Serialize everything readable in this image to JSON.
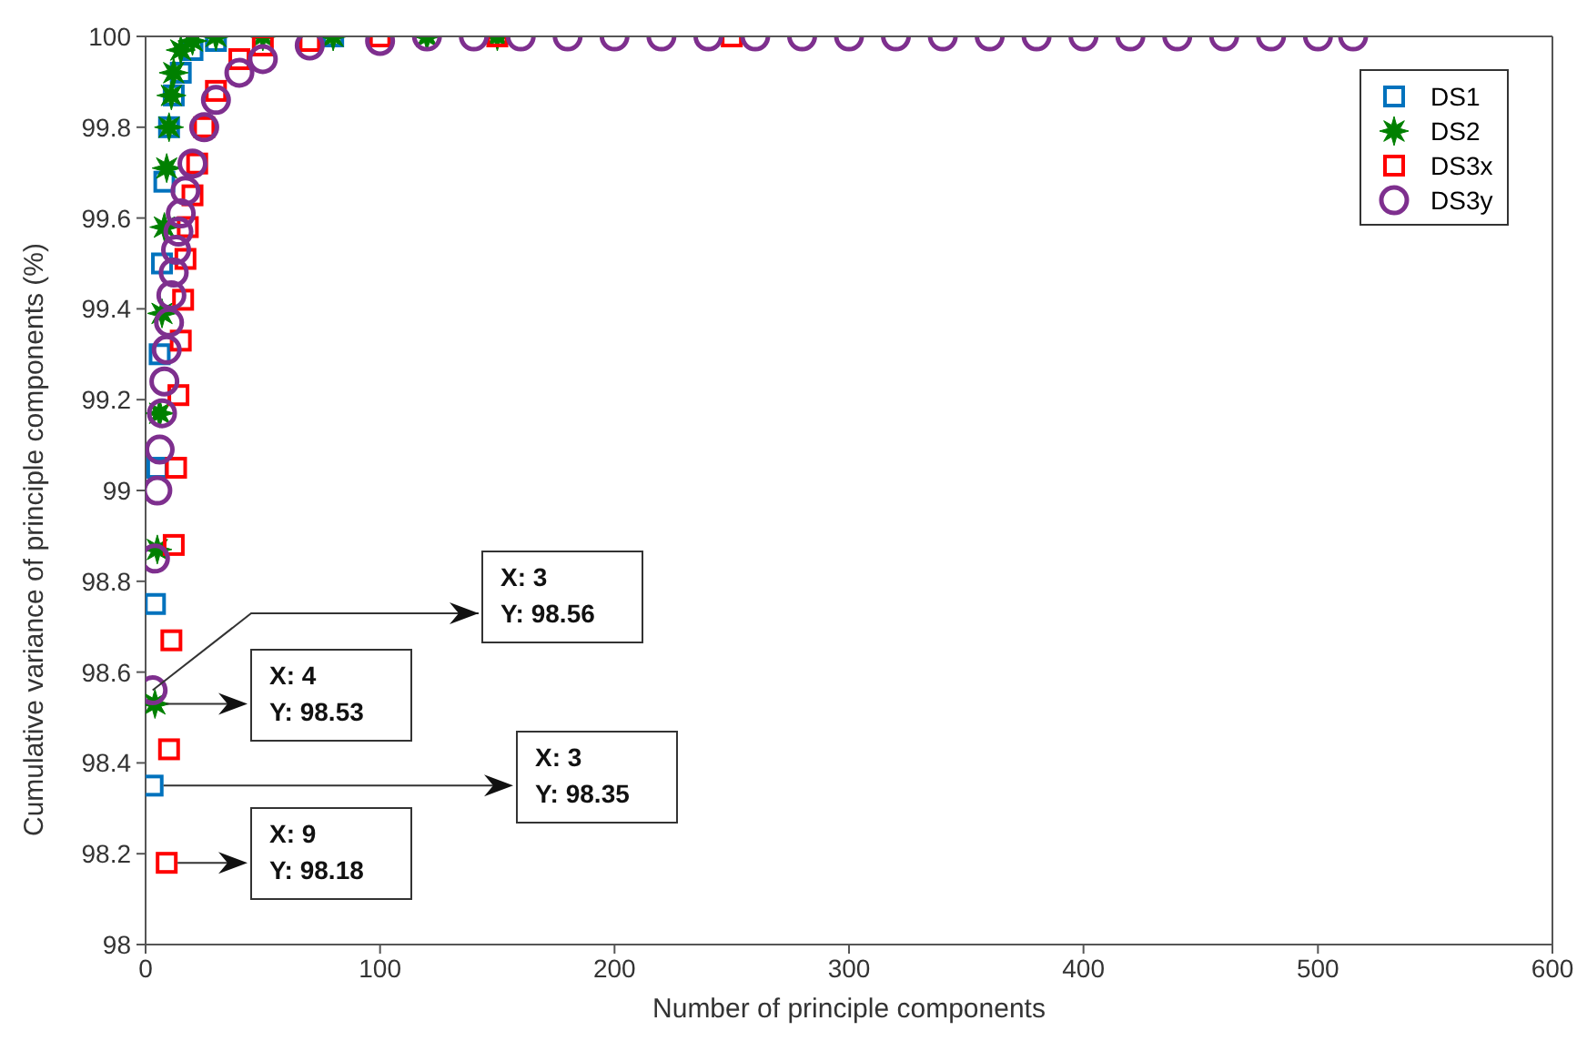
{
  "chart_data": {
    "type": "scatter",
    "xlabel": "Number of principle components",
    "ylabel": "Cumulative variance of principle components (%)",
    "xlim": [
      0,
      600
    ],
    "xticks": [
      0,
      100,
      200,
      300,
      400,
      500,
      600
    ],
    "ylim": [
      98,
      100
    ],
    "yticks": [
      98,
      98.2,
      98.4,
      98.6,
      98.8,
      99,
      99.2,
      99.4,
      99.6,
      99.8,
      100
    ],
    "grid": false,
    "legend": "top right",
    "series": [
      {
        "name": "DS1",
        "color": "#0072bd",
        "marker": "square",
        "x": [
          3,
          4,
          5,
          6,
          7,
          8,
          10,
          12,
          15,
          20,
          30,
          50,
          80
        ],
        "values": [
          98.35,
          98.75,
          99.05,
          99.3,
          99.5,
          99.68,
          99.8,
          99.87,
          99.92,
          99.97,
          99.99,
          null,
          100
        ]
      },
      {
        "name": "DS2",
        "color": "#008000",
        "marker": "star",
        "x": [
          4,
          5,
          6,
          7,
          8,
          9,
          10,
          11,
          12,
          15,
          20,
          30,
          50,
          80,
          120,
          150
        ],
        "values": [
          98.53,
          98.87,
          99.17,
          99.39,
          99.58,
          99.71,
          99.8,
          99.87,
          99.92,
          99.97,
          99.99,
          100,
          100,
          100,
          100,
          100
        ]
      },
      {
        "name": "DS3x",
        "color": "#ff0000",
        "marker": "square",
        "x": [
          9,
          10,
          11,
          12,
          13,
          14,
          15,
          16,
          17,
          18,
          20,
          22,
          25,
          30,
          40,
          50,
          70,
          100,
          150,
          200,
          250
        ],
        "values": [
          98.18,
          98.43,
          98.67,
          98.88,
          99.05,
          99.21,
          99.33,
          99.42,
          99.51,
          99.58,
          99.65,
          99.72,
          99.8,
          99.88,
          99.95,
          99.98,
          99.99,
          100,
          100,
          null,
          100
        ]
      },
      {
        "name": "DS3y",
        "color": "#7e2f8e",
        "marker": "circle",
        "x": [
          3,
          4,
          5,
          6,
          7,
          8,
          9,
          10,
          11,
          12,
          13,
          14,
          15,
          17,
          20,
          25,
          30,
          40,
          50,
          70,
          100,
          120,
          140,
          160,
          180,
          200,
          220,
          240,
          260,
          280,
          300,
          320,
          340,
          360,
          380,
          400,
          420,
          440,
          460,
          480,
          500,
          515
        ],
        "values": [
          98.56,
          98.85,
          99.0,
          99.09,
          99.17,
          99.24,
          99.31,
          99.37,
          99.43,
          99.48,
          99.53,
          99.57,
          99.61,
          99.66,
          99.72,
          99.8,
          99.86,
          99.92,
          99.95,
          99.98,
          99.99,
          100,
          100,
          100,
          100,
          100,
          100,
          100,
          100,
          100,
          100,
          100,
          100,
          100,
          100,
          100,
          100,
          100,
          100,
          100,
          100,
          100
        ]
      }
    ],
    "annotations": [
      {
        "text": "X: 3\nY: 98.56",
        "x": 3,
        "y": 98.56
      },
      {
        "text": "X: 4\nY: 98.53",
        "x": 4,
        "y": 98.53
      },
      {
        "text": "X: 3\nY: 98.35",
        "x": 3,
        "y": 98.35
      },
      {
        "text": "X: 9\nY: 98.18",
        "x": 9,
        "y": 98.18
      }
    ]
  }
}
